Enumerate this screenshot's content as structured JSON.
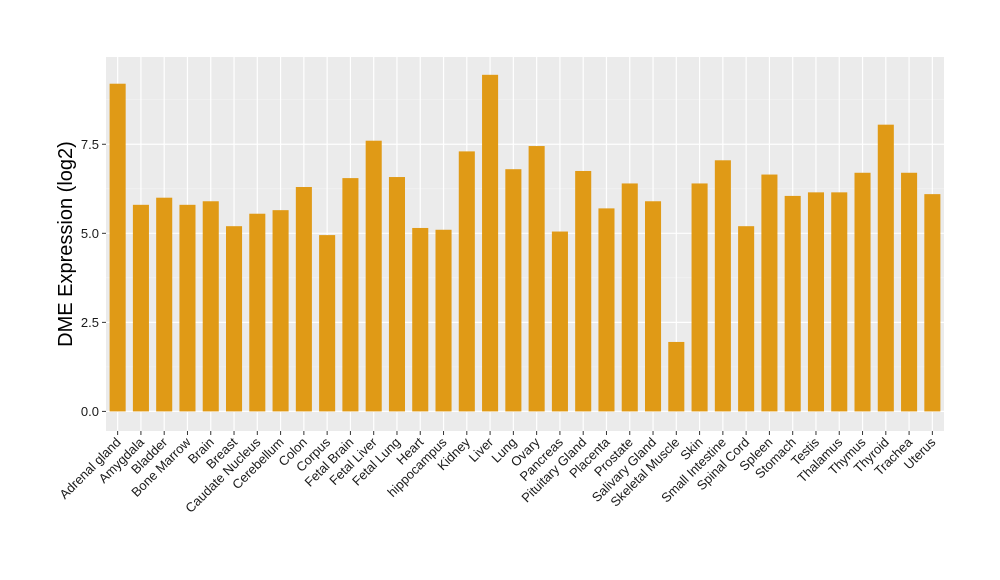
{
  "chart_data": {
    "type": "bar",
    "ylabel": "DME Expression (log2)",
    "xlabel": "",
    "ylim": [
      -0.55,
      9.95
    ],
    "yticks": [
      0.0,
      2.5,
      5.0,
      7.5
    ],
    "ytick_labels": [
      "0.0",
      "2.5",
      "5.0",
      "7.5"
    ],
    "grid": true,
    "bar_color": "#e09a16",
    "panel_color": "#ebebeb",
    "categories": [
      "Adrenal gland",
      "Amygdala",
      "Bladder",
      "Bone Marrow",
      "Brain",
      "Breast",
      "Caudate Nucleus",
      "Cerebellum",
      "Colon",
      "Corpus",
      "Fetal Brain",
      "Fetal Liver",
      "Fetal Lung",
      "Heart",
      "hippocampus",
      "Kidney",
      "Liver",
      "Lung",
      "Ovary",
      "Pancreas",
      "Pituitary Gland",
      "Placenta",
      "Prostate",
      "Salivary Gland",
      "Skeletal Muscle",
      "Skin",
      "Small Intestine",
      "Spinal Cord",
      "Spleen",
      "Stomach",
      "Testis",
      "Thalamus",
      "Thymus",
      "Thyroid",
      "Trachea",
      "Uterus"
    ],
    "values": [
      9.2,
      5.8,
      6.0,
      5.8,
      5.9,
      5.2,
      5.55,
      5.65,
      6.3,
      4.95,
      6.55,
      7.6,
      6.58,
      5.15,
      5.1,
      7.3,
      9.45,
      6.8,
      7.45,
      5.05,
      6.75,
      5.7,
      6.4,
      5.9,
      1.95,
      6.4,
      7.05,
      5.2,
      6.65,
      6.05,
      6.15,
      6.15,
      6.7,
      8.05,
      6.7,
      6.1
    ]
  }
}
